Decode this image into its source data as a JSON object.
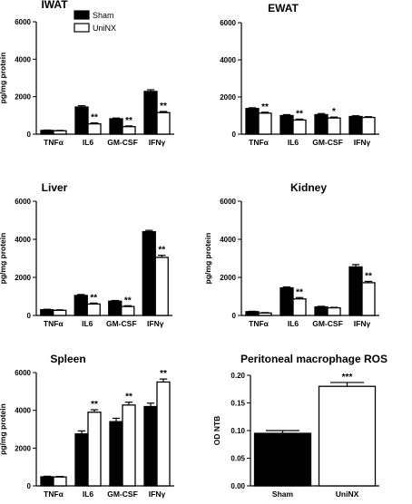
{
  "legend": {
    "entries": [
      "Sham",
      "UniNX"
    ]
  },
  "colors": {
    "sham": "#000000",
    "uninx": "#ffffff",
    "axis": "#000000"
  },
  "chart_data": [
    {
      "type": "bar",
      "title": "IWAT",
      "ylabel": "pg/mg protein",
      "ylim": [
        0,
        6000
      ],
      "yticks": [
        "0",
        "2000",
        "4000",
        "6000"
      ],
      "categories": [
        "TNFα",
        "IL6",
        "GM-CSF",
        "IFNγ"
      ],
      "series": [
        {
          "name": "Sham",
          "values": [
            200,
            1450,
            820,
            2280
          ],
          "errors": [
            20,
            70,
            40,
            90
          ]
        },
        {
          "name": "UniNX",
          "values": [
            180,
            550,
            400,
            1150
          ],
          "errors": [
            20,
            50,
            40,
            60
          ]
        }
      ],
      "significance": [
        "",
        "**",
        "**",
        "**"
      ],
      "legend": "top-left"
    },
    {
      "type": "bar",
      "title": "EWAT",
      "ylabel": "",
      "ylim": [
        0,
        6000
      ],
      "yticks": [
        "0",
        "2000",
        "4000",
        "6000"
      ],
      "categories": [
        "TNFα",
        "IL6",
        "GM-CSF",
        "IFNγ"
      ],
      "series": [
        {
          "name": "Sham",
          "values": [
            1380,
            1000,
            1050,
            950
          ],
          "errors": [
            40,
            50,
            60,
            40
          ]
        },
        {
          "name": "UniNX",
          "values": [
            1130,
            760,
            870,
            900
          ],
          "errors": [
            50,
            50,
            50,
            40
          ]
        }
      ],
      "significance": [
        "**",
        "**",
        "*",
        ""
      ]
    },
    {
      "type": "bar",
      "title": "Liver",
      "ylabel": "pg/mg protein",
      "ylim": [
        0,
        6000
      ],
      "yticks": [
        "0",
        "2000",
        "4000",
        "6000"
      ],
      "categories": [
        "TNFα",
        "IL6",
        "GM-CSF",
        "IFNγ"
      ],
      "series": [
        {
          "name": "Sham",
          "values": [
            300,
            1050,
            750,
            4400
          ],
          "errors": [
            25,
            50,
            35,
            70
          ]
        },
        {
          "name": "UniNX",
          "values": [
            270,
            600,
            470,
            3050
          ],
          "errors": [
            25,
            50,
            40,
            110
          ]
        }
      ],
      "significance": [
        "",
        "**",
        "**",
        "**"
      ]
    },
    {
      "type": "bar",
      "title": "Kidney",
      "ylabel": "pg/mg protein",
      "ylim": [
        0,
        6000
      ],
      "yticks": [
        "0",
        "2000",
        "4000",
        "6000"
      ],
      "categories": [
        "TNFα",
        "IL6",
        "GM-CSF",
        "IFNγ"
      ],
      "series": [
        {
          "name": "Sham",
          "values": [
            200,
            1450,
            450,
            2550
          ],
          "errors": [
            20,
            50,
            30,
            120
          ]
        },
        {
          "name": "UniNX",
          "values": [
            130,
            870,
            400,
            1720
          ],
          "errors": [
            20,
            70,
            25,
            70
          ]
        }
      ],
      "significance": [
        "",
        "**",
        "",
        "**"
      ]
    },
    {
      "type": "bar",
      "title": "Spleen",
      "ylabel": "pg/mg protein",
      "ylim": [
        0,
        6000
      ],
      "yticks": [
        "0",
        "2000",
        "4000",
        "6000"
      ],
      "categories": [
        "TNFα",
        "IL6",
        "GM-CSF",
        "IFNγ"
      ],
      "series": [
        {
          "name": "Sham",
          "values": [
            480,
            2750,
            3400,
            4200
          ],
          "errors": [
            30,
            160,
            180,
            180
          ]
        },
        {
          "name": "UniNX",
          "values": [
            470,
            3900,
            4280,
            5500
          ],
          "errors": [
            30,
            130,
            150,
            160
          ]
        }
      ],
      "significance": [
        "",
        "**",
        "**",
        "**"
      ]
    },
    {
      "type": "bar",
      "title": "Peritoneal macrophage ROS",
      "ylabel": "OD NTB",
      "ylim": [
        0,
        0.2
      ],
      "yticks": [
        "0.00",
        "0.05",
        "0.10",
        "0.15",
        "0.20"
      ],
      "categories": [
        "Sham",
        "UniNX"
      ],
      "values": [
        0.095,
        0.18
      ],
      "errors": [
        0.005,
        0.007
      ],
      "significance": [
        "",
        "***"
      ]
    }
  ]
}
